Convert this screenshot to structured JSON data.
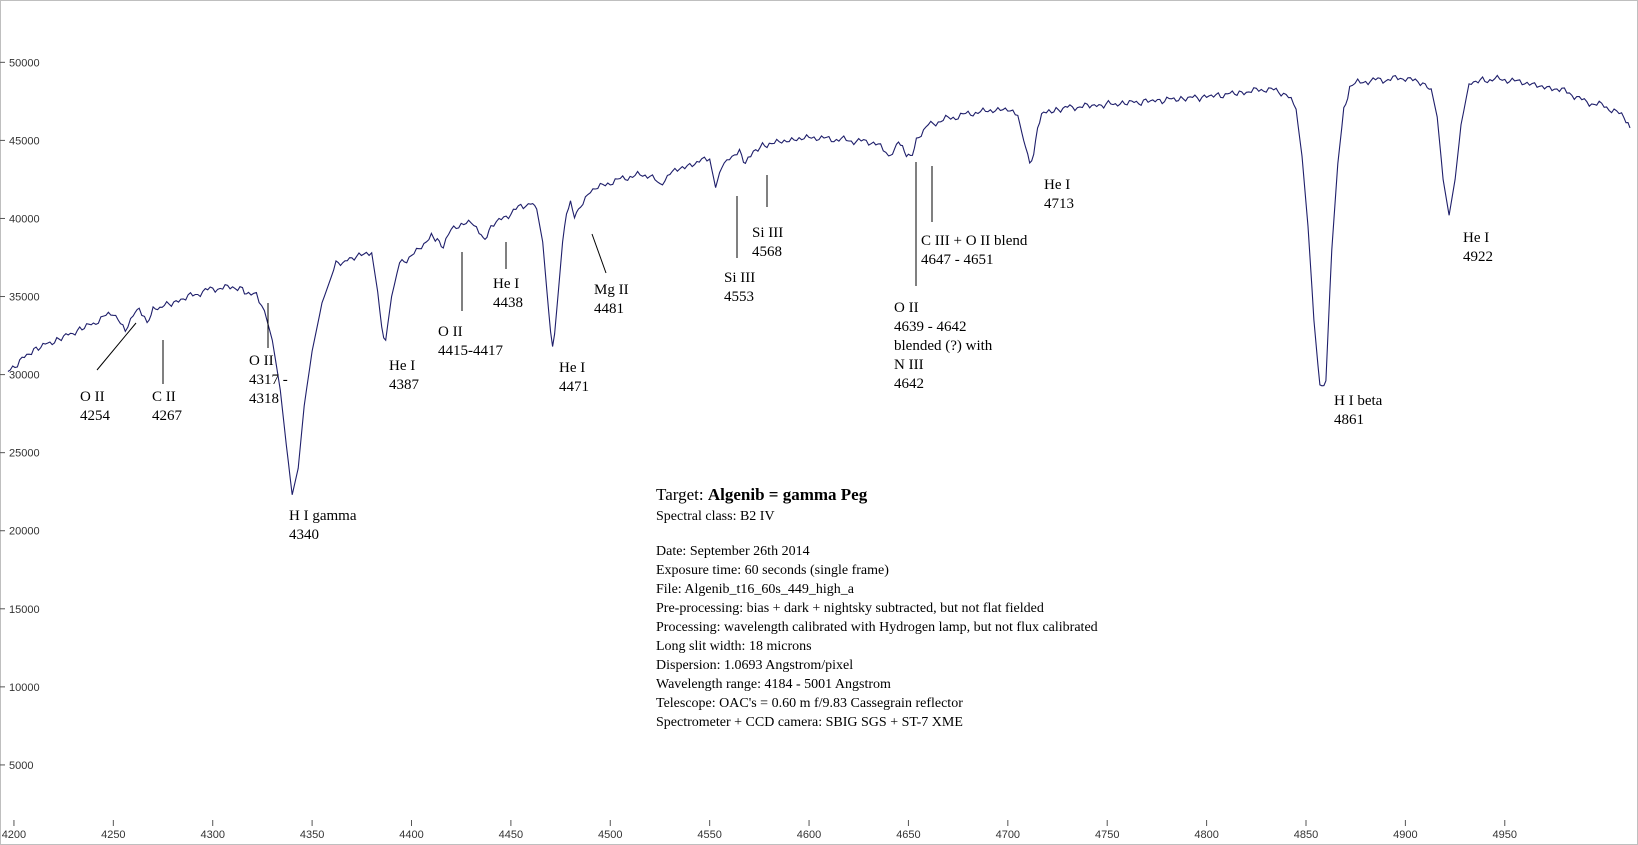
{
  "chart_data": {
    "type": "line",
    "xlim": [
      4195,
      5013
    ],
    "ylim": [
      0,
      53800
    ],
    "x_ticks": [
      4200,
      4250,
      4300,
      4350,
      4400,
      4450,
      4500,
      4550,
      4600,
      4650,
      4700,
      4750,
      4800,
      4850,
      4900,
      4950
    ],
    "y_ticks": [
      5000,
      10000,
      15000,
      20000,
      25000,
      30000,
      35000,
      40000,
      45000,
      50000
    ],
    "grid": false,
    "color": "#1f1f6b",
    "series": [
      {
        "x": [
          4197,
          4210,
          4225,
          4240,
          4250,
          4256,
          4260,
          4263,
          4267,
          4270,
          4278,
          4290,
          4300,
          4310,
          4315,
          4318,
          4322,
          4326,
          4330,
          4334,
          4337,
          4340,
          4343,
          4346,
          4350,
          4355,
          4362,
          4370,
          4376,
          4380,
          4383,
          4385,
          4387,
          4390,
          4394,
          4400,
          4405,
          4410,
          4413,
          4416,
          4420,
          4425,
          4430,
          4434,
          4436,
          4438,
          4440,
          4444,
          4450,
          4455,
          4460,
          4463,
          4466,
          4468,
          4470,
          4471,
          4472,
          4474,
          4476,
          4478,
          4480,
          4482,
          4485,
          4490,
          4500,
          4510,
          4520,
          4525,
          4530,
          4535,
          4540,
          4546,
          4550,
          4553,
          4556,
          4560,
          4565,
          4568,
          4572,
          4580,
          4590,
          4600,
          4610,
          4620,
          4630,
          4636,
          4640,
          4642,
          4645,
          4648,
          4651,
          4654,
          4660,
          4670,
          4680,
          4690,
          4700,
          4705,
          4708,
          4711,
          4713,
          4715,
          4718,
          4722,
          4730,
          4740,
          4760,
          4780,
          4800,
          4820,
          4830,
          4840,
          4845,
          4848,
          4851,
          4854,
          4857,
          4860,
          4861,
          4863,
          4866,
          4869,
          4872,
          4876,
          4880,
          4890,
          4900,
          4905,
          4910,
          4913,
          4916,
          4919,
          4922,
          4925,
          4928,
          4932,
          4940,
          4950,
          4960,
          4970,
          4980,
          4990,
          5000,
          5005,
          5010,
          5013
        ],
        "y": [
          30200,
          31600,
          32400,
          33300,
          34000,
          32800,
          33900,
          34300,
          33200,
          34200,
          34500,
          35100,
          35500,
          35600,
          35500,
          35000,
          35200,
          34100,
          32200,
          29000,
          25500,
          22300,
          24000,
          28000,
          31500,
          34600,
          37100,
          37400,
          37800,
          37800,
          35300,
          33000,
          32200,
          35000,
          37200,
          37500,
          38300,
          38800,
          38600,
          38200,
          39300,
          39600,
          39800,
          39200,
          38700,
          38900,
          39500,
          39900,
          40300,
          40800,
          41000,
          40600,
          38500,
          35500,
          32600,
          31900,
          32600,
          35500,
          38500,
          40500,
          41000,
          40100,
          40700,
          41800,
          42300,
          42700,
          42800,
          42100,
          42900,
          43200,
          43400,
          43700,
          43800,
          42000,
          43200,
          44000,
          44200,
          43500,
          44300,
          44800,
          45000,
          45200,
          45100,
          45000,
          44900,
          44700,
          44000,
          44200,
          45000,
          44200,
          43900,
          45000,
          46000,
          46400,
          46700,
          46900,
          47000,
          46600,
          45000,
          43500,
          44100,
          46000,
          46800,
          46900,
          47100,
          47200,
          47400,
          47600,
          47800,
          48100,
          48300,
          48000,
          47000,
          44000,
          39500,
          33500,
          29200,
          29600,
          32500,
          38000,
          43500,
          47000,
          48300,
          48700,
          48800,
          48900,
          49000,
          48800,
          48600,
          48300,
          46500,
          42500,
          40200,
          42500,
          46000,
          48600,
          48900,
          48900,
          48700,
          48400,
          48200,
          47500,
          47200,
          46900,
          46500,
          45800
        ]
      }
    ],
    "annotations": [
      {
        "lines": [
          "O II",
          "4254"
        ],
        "x": 4254
      },
      {
        "lines": [
          "C II",
          "4267"
        ],
        "x": 4267
      },
      {
        "lines": [
          "O II",
          "4317 -",
          "4318"
        ],
        "x": 4317
      },
      {
        "lines": [
          "H I gamma",
          "4340"
        ],
        "x": 4340
      },
      {
        "lines": [
          "He I",
          "4387"
        ],
        "x": 4387
      },
      {
        "lines": [
          "O II",
          "4415-4417"
        ],
        "x": 4416
      },
      {
        "lines": [
          "He I",
          "4438"
        ],
        "x": 4438
      },
      {
        "lines": [
          "He I",
          "4471"
        ],
        "x": 4471
      },
      {
        "lines": [
          "Mg II",
          "4481"
        ],
        "x": 4481
      },
      {
        "lines": [
          "Si III",
          "4553"
        ],
        "x": 4553
      },
      {
        "lines": [
          "Si III",
          "4568"
        ],
        "x": 4568
      },
      {
        "lines": [
          "O II",
          "4639 - 4642",
          "blended (?) with",
          "N III",
          "4642"
        ],
        "x": 4640
      },
      {
        "lines": [
          "C III + O II blend",
          "4647 - 4651"
        ],
        "x": 4649
      },
      {
        "lines": [
          "He I",
          "4713"
        ],
        "x": 4713
      },
      {
        "lines": [
          "H I beta",
          "4861"
        ],
        "x": 4861
      },
      {
        "lines": [
          "He I",
          "4922"
        ],
        "x": 4922
      }
    ],
    "info_box": {
      "title_prefix": "Target: ",
      "title_bold": "Algenib = gamma Peg",
      "spectral_class": "Spectral class: B2 IV",
      "details": [
        "Date: September 26th 2014",
        "Exposure time: 60 seconds (single frame)",
        "File: Algenib_t16_60s_449_high_a",
        "Pre-processing: bias + dark + nightsky subtracted, but not flat fielded",
        "Processing: wavelength calibrated with Hydrogen lamp, but not flux calibrated",
        "Long slit width: 18 microns",
        "Dispersion: 1.0693 Angstrom/pixel",
        "Wavelength range: 4184 - 5001 Angstrom",
        "Telescope: OAC's = 0.60 m f/9.83 Cassegrain reflector",
        "Spectrometer + CCD camera: SBIG SGS + ST-7 XME"
      ]
    }
  }
}
